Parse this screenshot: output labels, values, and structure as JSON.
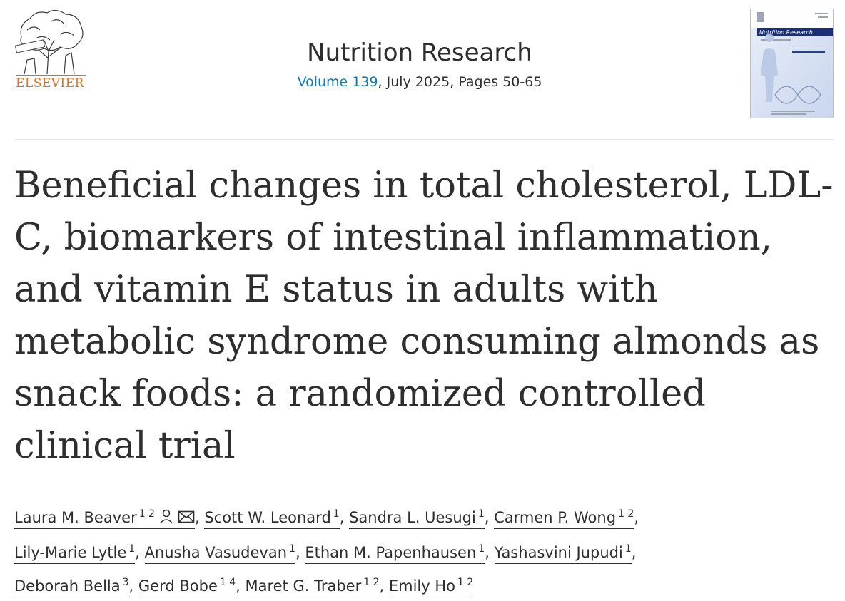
{
  "publisher": {
    "name": "ELSEVIER"
  },
  "journal": {
    "title": "Nutrition Research",
    "volume_link": "Volume 139",
    "issue_info": ", July 2025, Pages 50-65",
    "cover_title": "Nutrition Research"
  },
  "article": {
    "title": "Beneficial changes in total cholesterol, LDL-C, biomarkers of intestinal inflammation, and vitamin E status in adults with metabolic syndrome consuming almonds as snack foods: a randomized controlled clinical trial"
  },
  "authors": [
    {
      "name": "Laura M. Beaver",
      "affiliations": "1 2",
      "icons": [
        "person-icon",
        "email-icon"
      ],
      "sep": ", "
    },
    {
      "name": "Scott W. Leonard",
      "affiliations": "1",
      "sep": ", "
    },
    {
      "name": "Sandra L. Uesugi",
      "affiliations": "1",
      "sep": ", "
    },
    {
      "name": "Carmen P. Wong",
      "affiliations": "1 2",
      "sep": ","
    },
    {
      "name": "Lily-Marie Lytle",
      "affiliations": "1",
      "sep": ", "
    },
    {
      "name": "Anusha Vasudevan",
      "affiliations": "1",
      "sep": ", "
    },
    {
      "name": "Ethan M. Papenhausen",
      "affiliations": "1",
      "sep": ", "
    },
    {
      "name": "Yashasvini Jupudi",
      "affiliations": "1",
      "sep": ","
    },
    {
      "name": "Deborah Bella",
      "affiliations": "3",
      "sep": ", "
    },
    {
      "name": "Gerd Bobe",
      "affiliations": "1 4",
      "sep": ", "
    },
    {
      "name": "Maret G. Traber",
      "affiliations": "1 2",
      "sep": ", "
    },
    {
      "name": "Emily Ho",
      "affiliations": "1 2",
      "sep": ""
    }
  ],
  "colors": {
    "link": "#0c7dbb",
    "publisher": "#e9711c",
    "text": "#2e2e2e"
  }
}
